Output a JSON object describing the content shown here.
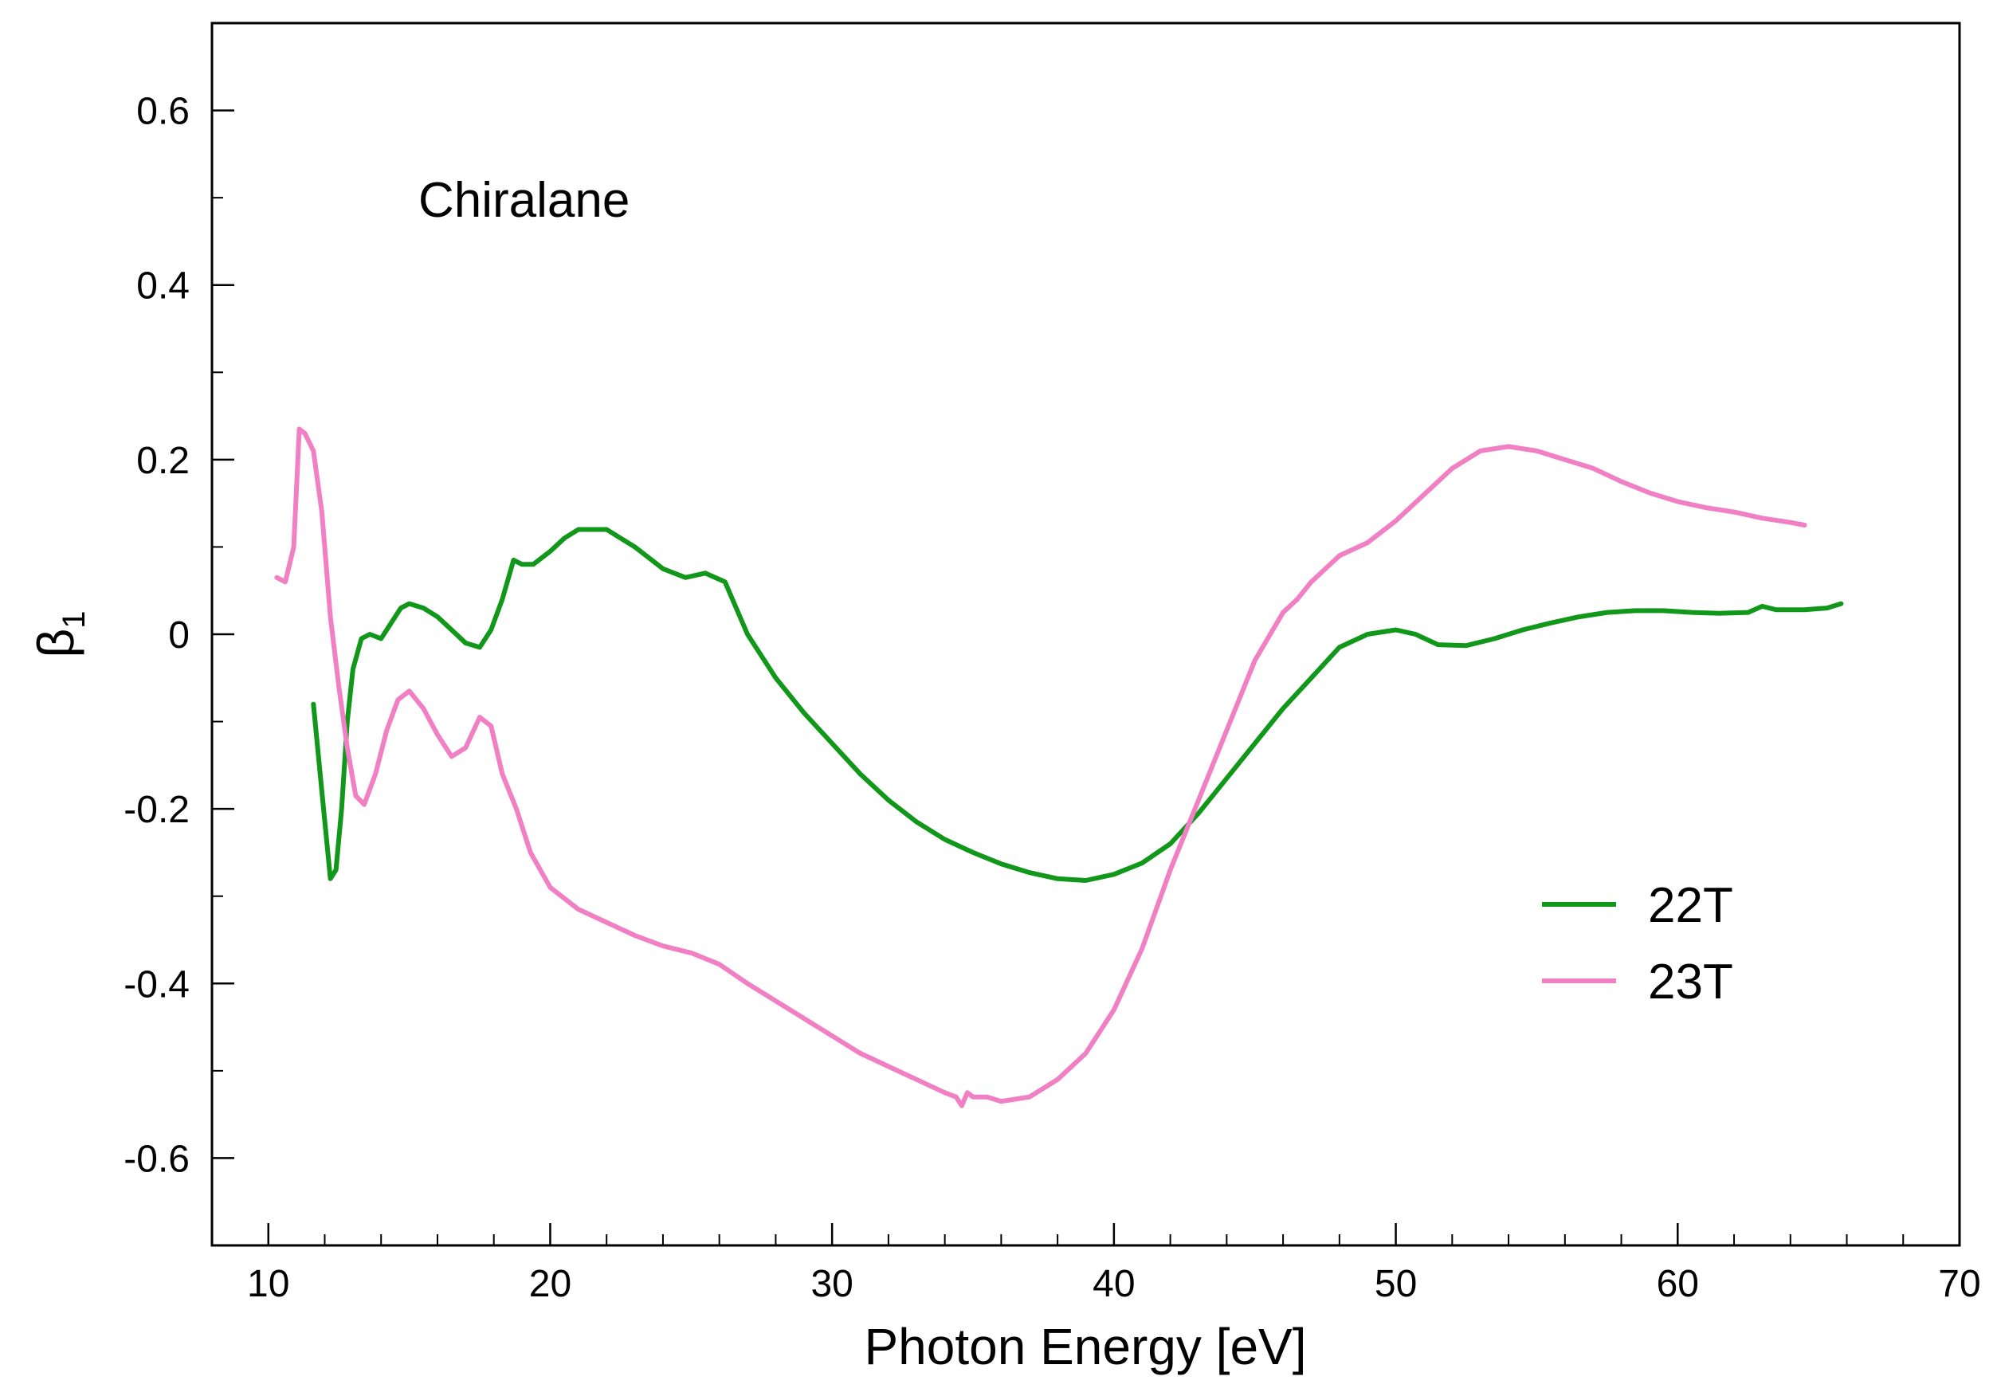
{
  "chart_data": {
    "type": "line",
    "title": "",
    "annotation": "Chiralane",
    "xlabel": "Photon Energy [eV]",
    "ylabel_symbol": "β",
    "ylabel_subscript": "1",
    "xlim": [
      8,
      70
    ],
    "ylim": [
      -0.7,
      0.7
    ],
    "xticks": [
      10,
      20,
      30,
      40,
      50,
      60,
      70
    ],
    "xtick_labels": [
      "10",
      "20",
      "30",
      "40",
      "50",
      "60",
      "70"
    ],
    "xminor_step": 2,
    "yticks": [
      -0.6,
      -0.4,
      -0.2,
      0,
      0.2,
      0.4,
      0.6
    ],
    "ytick_labels": [
      "-0.6",
      "-0.4",
      "-0.2",
      "0",
      "0.2",
      "0.4",
      "0.6"
    ],
    "yminor_step": 0.1,
    "grid": false,
    "legend_position": "lower-right",
    "series": [
      {
        "name": "22T",
        "color": "#11971a",
        "x": [
          11.6,
          11.9,
          12.2,
          12.4,
          12.6,
          12.8,
          13.0,
          13.3,
          13.6,
          14.0,
          14.3,
          14.7,
          15.0,
          15.5,
          16.0,
          16.5,
          17.0,
          17.5,
          17.9,
          18.3,
          18.7,
          19.0,
          19.4,
          20.0,
          20.5,
          21.0,
          21.5,
          22.0,
          23.0,
          24.0,
          24.8,
          25.5,
          26.2,
          27.0,
          28.0,
          29.0,
          30.0,
          31.0,
          32.0,
          33.0,
          34.0,
          35.0,
          36.0,
          37.0,
          38.0,
          39.0,
          40.0,
          41.0,
          42.0,
          43.0,
          44.0,
          45.0,
          46.0,
          47.0,
          48.0,
          49.0,
          50.0,
          50.7,
          51.5,
          52.5,
          53.5,
          54.5,
          55.5,
          56.5,
          57.5,
          58.5,
          59.5,
          60.5,
          61.5,
          62.5,
          63.0,
          63.5,
          64.5,
          65.3,
          65.8
        ],
        "y": [
          -0.08,
          -0.18,
          -0.28,
          -0.27,
          -0.2,
          -0.1,
          -0.04,
          -0.005,
          0.0,
          -0.005,
          0.01,
          0.03,
          0.035,
          0.03,
          0.02,
          0.005,
          -0.01,
          -0.015,
          0.005,
          0.04,
          0.085,
          0.08,
          0.08,
          0.095,
          0.11,
          0.12,
          0.12,
          0.12,
          0.1,
          0.075,
          0.065,
          0.07,
          0.06,
          0.0,
          -0.05,
          -0.09,
          -0.125,
          -0.16,
          -0.19,
          -0.215,
          -0.235,
          -0.25,
          -0.263,
          -0.273,
          -0.28,
          -0.282,
          -0.275,
          -0.262,
          -0.24,
          -0.205,
          -0.165,
          -0.125,
          -0.085,
          -0.05,
          -0.015,
          0.0,
          0.005,
          0.0,
          -0.012,
          -0.013,
          -0.005,
          0.005,
          0.013,
          0.02,
          0.025,
          0.027,
          0.027,
          0.025,
          0.024,
          0.025,
          0.032,
          0.028,
          0.028,
          0.03,
          0.035
        ]
      },
      {
        "name": "23T",
        "color": "#f07fc3",
        "x": [
          10.3,
          10.6,
          10.9,
          11.1,
          11.3,
          11.6,
          11.9,
          12.2,
          12.5,
          12.8,
          13.1,
          13.4,
          13.8,
          14.2,
          14.6,
          15.0,
          15.5,
          16.0,
          16.5,
          17.0,
          17.5,
          17.9,
          18.3,
          18.8,
          19.3,
          20.0,
          21.0,
          22.0,
          23.0,
          24.0,
          25.0,
          26.0,
          27.0,
          28.0,
          29.0,
          30.0,
          31.0,
          32.0,
          33.0,
          34.0,
          34.4,
          34.6,
          34.8,
          35.0,
          35.5,
          36.0,
          37.0,
          38.0,
          39.0,
          40.0,
          41.0,
          42.0,
          43.0,
          44.0,
          45.0,
          46.0,
          46.5,
          47.0,
          48.0,
          49.0,
          50.0,
          51.0,
          52.0,
          53.0,
          54.0,
          55.0,
          56.0,
          57.0,
          58.0,
          59.0,
          60.0,
          61.0,
          62.0,
          63.0,
          64.0,
          64.5
        ],
        "y": [
          0.065,
          0.06,
          0.1,
          0.235,
          0.23,
          0.21,
          0.14,
          0.02,
          -0.06,
          -0.13,
          -0.185,
          -0.195,
          -0.16,
          -0.11,
          -0.075,
          -0.065,
          -0.085,
          -0.115,
          -0.14,
          -0.13,
          -0.095,
          -0.105,
          -0.16,
          -0.2,
          -0.25,
          -0.29,
          -0.315,
          -0.33,
          -0.345,
          -0.357,
          -0.365,
          -0.378,
          -0.4,
          -0.42,
          -0.44,
          -0.46,
          -0.48,
          -0.495,
          -0.51,
          -0.525,
          -0.53,
          -0.54,
          -0.525,
          -0.53,
          -0.53,
          -0.535,
          -0.53,
          -0.51,
          -0.48,
          -0.43,
          -0.36,
          -0.27,
          -0.19,
          -0.11,
          -0.03,
          0.025,
          0.04,
          0.06,
          0.09,
          0.105,
          0.13,
          0.16,
          0.19,
          0.21,
          0.215,
          0.21,
          0.2,
          0.19,
          0.175,
          0.162,
          0.152,
          0.145,
          0.14,
          0.133,
          0.128,
          0.125
        ]
      }
    ]
  }
}
